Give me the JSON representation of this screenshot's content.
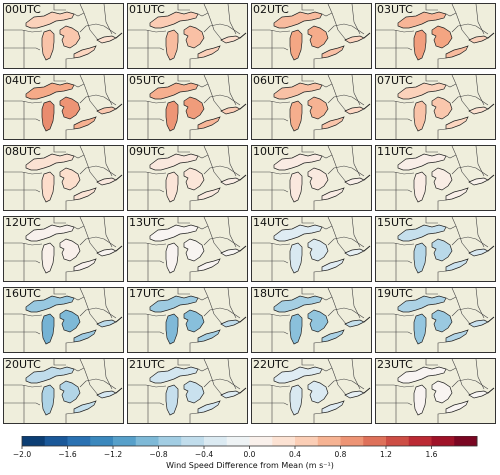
{
  "panels": [
    {
      "label": "00UTC",
      "value": 0.55
    },
    {
      "label": "01UTC",
      "value": 0.6
    },
    {
      "label": "02UTC",
      "value": 0.75
    },
    {
      "label": "03UTC",
      "value": 0.8
    },
    {
      "label": "04UTC",
      "value": 0.9
    },
    {
      "label": "05UTC",
      "value": 0.85
    },
    {
      "label": "06UTC",
      "value": 0.7
    },
    {
      "label": "07UTC",
      "value": 0.55
    },
    {
      "label": "08UTC",
      "value": 0.35
    },
    {
      "label": "09UTC",
      "value": 0.25
    },
    {
      "label": "10UTC",
      "value": 0.2
    },
    {
      "label": "11UTC",
      "value": 0.15
    },
    {
      "label": "12UTC",
      "value": 0.1
    },
    {
      "label": "13UTC",
      "value": 0.05
    },
    {
      "label": "14UTC",
      "value": -0.3
    },
    {
      "label": "15UTC",
      "value": -0.55
    },
    {
      "label": "16UTC",
      "value": -0.9
    },
    {
      "label": "17UTC",
      "value": -0.85
    },
    {
      "label": "18UTC",
      "value": -0.8
    },
    {
      "label": "19UTC",
      "value": -0.75
    },
    {
      "label": "20UTC",
      "value": -0.6
    },
    {
      "label": "21UTC",
      "value": -0.45
    },
    {
      "label": "22UTC",
      "value": -0.3
    },
    {
      "label": "23UTC",
      "value": 0.05
    }
  ],
  "colorbar": {
    "title": "Wind Speed Difference from Mean (m s⁻¹)",
    "range": [
      -2.0,
      2.0
    ],
    "ticks": [
      "−2.0",
      "−1.6",
      "−1.2",
      "−0.8",
      "−0.4",
      "0.0",
      "0.4",
      "0.8",
      "1.2",
      "1.6"
    ],
    "tick_values": [
      -2.0,
      -1.6,
      -1.2,
      -0.8,
      -0.4,
      0.0,
      0.4,
      0.8,
      1.2,
      1.6
    ],
    "colors": [
      "#053061",
      "#2166ac",
      "#4393c3",
      "#92c5de",
      "#d1e5f0",
      "#f7f7f7",
      "#fddbc7",
      "#f4a582",
      "#d6604d",
      "#b2182b",
      "#67001f"
    ]
  },
  "colors": {
    "land": "#efeedc",
    "border": "#333333"
  }
}
